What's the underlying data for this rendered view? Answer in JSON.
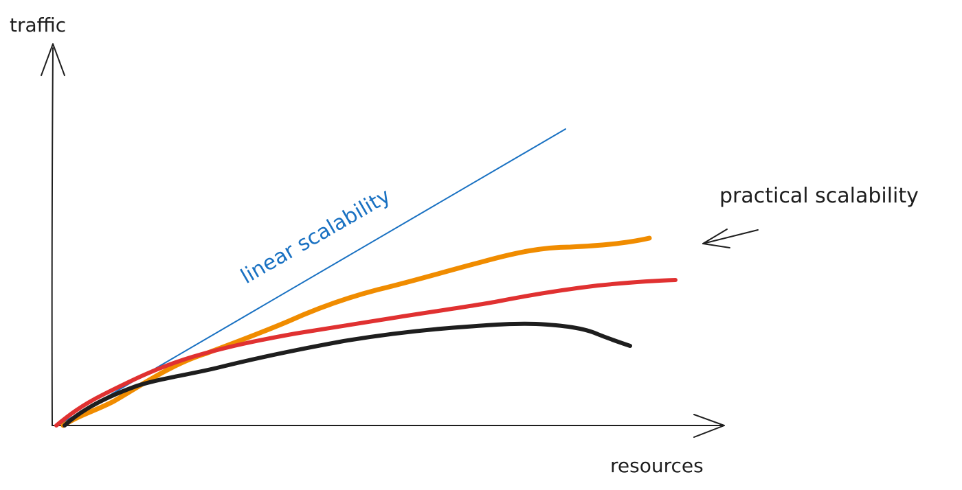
{
  "axes": {
    "y_label": "traffic",
    "x_label": "resources"
  },
  "annotations": {
    "linear_label": "linear scalability",
    "practical_label": "practical scalability"
  },
  "colors": {
    "axis": "#1e1e1e",
    "linear": "#1971c2",
    "orange": "#f08c00",
    "red": "#e03131",
    "black": "#1e1e1e"
  }
}
